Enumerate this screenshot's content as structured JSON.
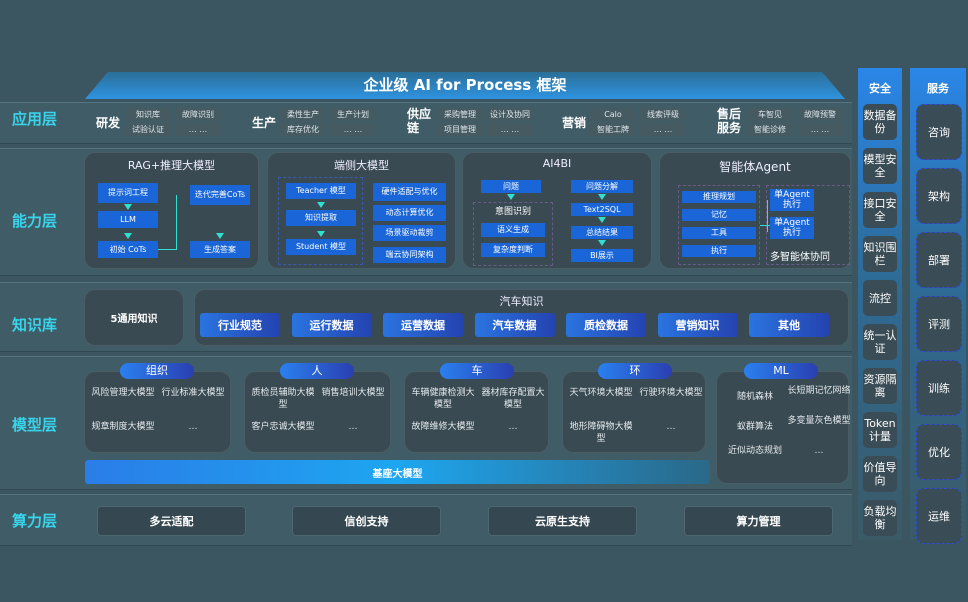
{
  "title": "企业级 AI for Process 框架",
  "layers": [
    "应用层",
    "能力层",
    "知识库",
    "模型层",
    "算力层"
  ],
  "application": [
    {
      "label": "研发",
      "items": [
        "知识库",
        "故障识别",
        "试验认证",
        "… …"
      ]
    },
    {
      "label": "生产",
      "items": [
        "柔性生产",
        "生产计划",
        "库存优化",
        "… …"
      ]
    },
    {
      "label": "供应链",
      "items": [
        "采购管理",
        "设计及协同",
        "项目管理",
        "… …"
      ]
    },
    {
      "label": "营销",
      "items": [
        "Calo",
        "线索评级",
        "智能工牌",
        "… …"
      ]
    },
    {
      "label": "售后服务",
      "items": [
        "车智见",
        "故障预警",
        "智能诊修",
        "… …"
      ]
    }
  ],
  "capability": {
    "rag": {
      "title": "RAG+推理大模型",
      "prompt": "提示词工程",
      "llm": "LLM",
      "init": "初始 CoTs",
      "iter": "迭代完善CoTs",
      "answer": "生成答案"
    },
    "edge": {
      "title": "端侧大模型",
      "teacher": "Teacher 模型",
      "extract": "知识提取",
      "student": "Student 模型",
      "right": [
        "硬件适配与优化",
        "动态计算优化",
        "场景驱动裁剪",
        "端云协同架构"
      ]
    },
    "bi": {
      "title": "AI4BI",
      "question": "问题",
      "intent": "意图识别",
      "semantic": "语义生成",
      "complexity": "复杂度判断",
      "right": [
        "问题分解",
        "Text2SQL",
        "总结结果",
        "BI展示"
      ]
    },
    "agent": {
      "title": "智能体Agent",
      "left": [
        "推理规划",
        "记忆",
        "工具",
        "执行"
      ],
      "exec": [
        "单Agent执行",
        "单Agent执行"
      ],
      "multi": "多智能体协同"
    }
  },
  "knowledge": {
    "general": "5通用知识",
    "auto_title": "汽车知识",
    "items": [
      "行业规范",
      "运行数据",
      "运营数据",
      "汽车数据",
      "质检数据",
      "营销知识",
      "其他"
    ]
  },
  "models": {
    "groups": [
      {
        "label": "组织",
        "items": [
          "风险管理大模型",
          "行业标准大模型",
          "规章制度大模型",
          "…"
        ]
      },
      {
        "label": "人",
        "items": [
          "质检员辅助大模型",
          "销售培训大模型",
          "客户忠诚大模型",
          "…"
        ]
      },
      {
        "label": "车",
        "items": [
          "车辆健康检测大模型",
          "器材库存配置大模型",
          "故障维修大模型",
          "…"
        ]
      },
      {
        "label": "环",
        "items": [
          "天气环境大模型",
          "行驶环境大模型",
          "地形障碍物大模型",
          "…"
        ]
      },
      {
        "label": "ML",
        "items": [
          "随机森林",
          "长短期记忆网络",
          "蚁群算法",
          "多变量灰色模型",
          "近似动态规划",
          "…"
        ]
      }
    ],
    "base": "基座大模型"
  },
  "compute": [
    "多云适配",
    "信创支持",
    "云原生支持",
    "算力管理"
  ],
  "security": {
    "title": "安全",
    "items": [
      "数据备份",
      "模型安全",
      "接口安全",
      "知识围栏",
      "流控",
      "统一认证",
      "资源隔离",
      "Token计量",
      "价值导向",
      "负载均衡"
    ]
  },
  "service": {
    "title": "服务",
    "items": [
      "咨询",
      "架构",
      "部署",
      "评测",
      "训练",
      "优化",
      "运维"
    ]
  }
}
